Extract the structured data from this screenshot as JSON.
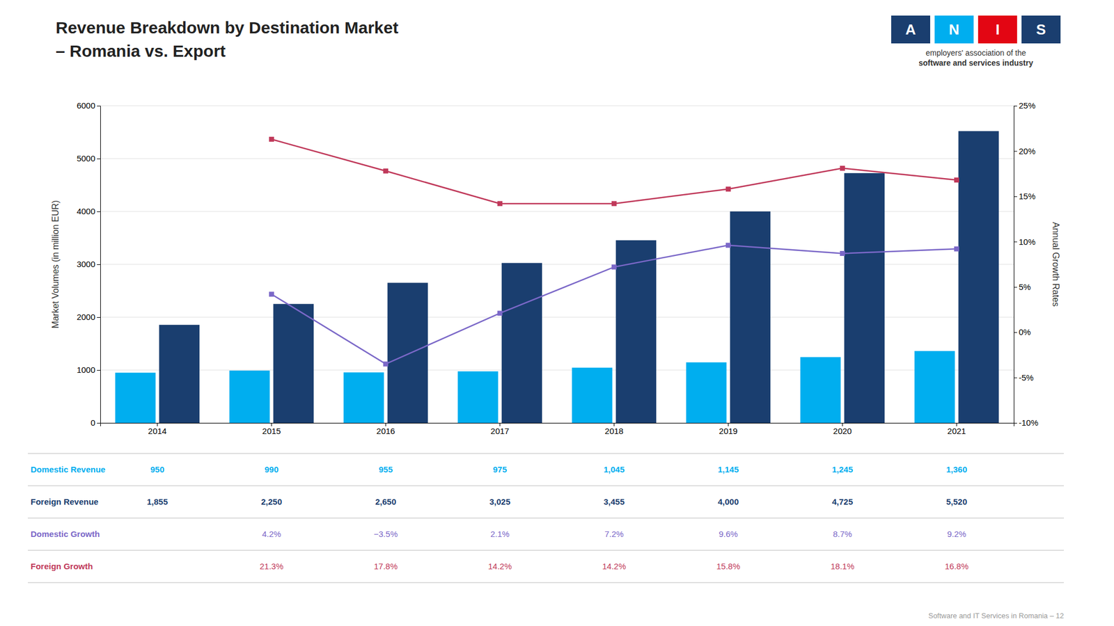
{
  "chart_data": {
    "type": "bar",
    "title": "Revenue Breakdown by Destination Market",
    "subtitle": "– Romania vs. Export",
    "categories": [
      "2014",
      "2015",
      "2016",
      "2017",
      "2018",
      "2019",
      "2020",
      "2021"
    ],
    "ylabel": "Market Volumes (in million EUR)",
    "y2label": "Annual Growth Rates",
    "ylim": [
      0,
      6000
    ],
    "yticks": [
      0,
      1000,
      2000,
      3000,
      4000,
      5000,
      6000
    ],
    "y2lim": [
      -10,
      25
    ],
    "y2ticks": [
      {
        "value": -10,
        "label": "-10%"
      },
      {
        "value": -5,
        "label": "-5%"
      },
      {
        "value": 0,
        "label": "0%"
      },
      {
        "value": 5,
        "label": "5%"
      },
      {
        "value": 10,
        "label": "10%"
      },
      {
        "value": 15,
        "label": "15%"
      },
      {
        "value": 20,
        "label": "20%"
      },
      {
        "value": 25,
        "label": "25%"
      }
    ],
    "grid": true,
    "series": [
      {
        "name": "Domestic Revenue",
        "color": "#00AEEF",
        "values": [
          950,
          990,
          955,
          975,
          1045,
          1145,
          1245,
          1360
        ],
        "value_labels": [
          "950",
          "990",
          "955",
          "975",
          "1,045",
          "1,145",
          "1,245",
          "1,360"
        ]
      },
      {
        "name": "Foreign Revenue",
        "color": "#1A3E6F",
        "values": [
          1855,
          2250,
          2650,
          3025,
          3455,
          4000,
          4725,
          5520
        ],
        "value_labels": [
          "1,855",
          "2,250",
          "2,650",
          "3,025",
          "3,455",
          "4,000",
          "4,725",
          "5,520"
        ]
      },
      {
        "name": "Domestic Growth",
        "color": "#7B68C8",
        "type": "line",
        "axis": "y2",
        "marker": "square",
        "values": [
          null,
          4.2,
          -3.5,
          2.1,
          7.2,
          9.6,
          8.7,
          9.2
        ],
        "value_labels": [
          null,
          "4.2%",
          "−3.5%",
          "2.1%",
          "7.2%",
          "9.6%",
          "8.7%",
          "9.2%"
        ]
      },
      {
        "name": "Foreign Growth",
        "color": "#C0395A",
        "type": "line",
        "axis": "y2",
        "marker": "square",
        "values": [
          null,
          21.3,
          17.8,
          14.2,
          14.2,
          15.8,
          18.1,
          16.8
        ],
        "value_labels": [
          null,
          "21.3%",
          "17.8%",
          "14.2%",
          "14.2%",
          "15.8%",
          "18.1%",
          "16.8%"
        ]
      }
    ],
    "logo": {
      "letters": [
        {
          "text": "A",
          "color": "#1A3E6F"
        },
        {
          "text": "N",
          "color": "#00AEEF"
        },
        {
          "text": "I",
          "color": "#E30613"
        },
        {
          "text": "S",
          "color": "#1A3E6F"
        }
      ],
      "lines": [
        "employers' association of the",
        "software and services industry"
      ]
    },
    "footer": "Software and IT Services in Romania – 12"
  }
}
